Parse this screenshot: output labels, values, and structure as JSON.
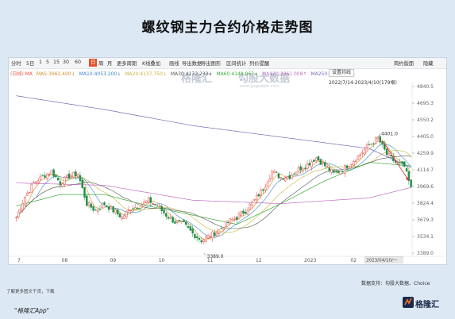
{
  "title": "螺纹钢主力合约价格走势图",
  "toolbar": {
    "items": [
      "分时",
      "5日",
      "1",
      "5",
      "15",
      "30",
      "60",
      "日",
      "周",
      "月",
      "更多周期",
      "K线叠加",
      "画线",
      "导出数据",
      "导出图形",
      "区间统计",
      "列价提醒"
    ],
    "active_index": 7,
    "right_items": [
      "简约版面",
      "隐藏"
    ]
  },
  "ma_legend": {
    "label": "(日线) MA",
    "items": [
      {
        "text": "MA5:3962.400↓",
        "color": "#d4902a"
      },
      {
        "text": "MA10:4053.200↓",
        "color": "#3a86c8"
      },
      {
        "text": "MA20:4137.750↓",
        "color": "#c8b43a"
      },
      {
        "text": "MA30:4172.233↓",
        "color": "#555555"
      },
      {
        "text": "MA60:4148.967↓",
        "color": "#3aa83a"
      },
      {
        "text": "MA120:3961.008↑",
        "color": "#c06fc0"
      },
      {
        "text": "MA250:4133.656↓",
        "color": "#7b68b8"
      }
    ]
  },
  "settings_label": "设置均线",
  "range_label": "2022/7/14-2023/4/10(179根)",
  "watermark": {
    "name": "格隆汇",
    "sub": "勾股大数据",
    "url": "www.gogudata.com"
  },
  "annotation_high": "4401.0",
  "annotation_low": "3389.0",
  "x_selected": "2023/04/10/一",
  "footer_note": "了解更多图文干货，下载",
  "source": "数据支持：勾股大数据、Choice",
  "app_label": "\"格隆汇App\"",
  "brand_name": "格隆汇",
  "colors": {
    "up": "#e8433a",
    "down": "#1f8f4a",
    "trend_arrow": "#e03a3a"
  },
  "chart_data": {
    "type": "candlestick",
    "title": "螺纹钢主力合约价格走势图",
    "x_range": [
      "2022/7/14",
      "2023/4/10"
    ],
    "x_tick_labels": [
      "7",
      "08",
      "09",
      "10",
      "11",
      "12",
      "2023",
      "02",
      "03"
    ],
    "y_tick_labels": [
      3389.0,
      3534.1,
      3679.3,
      3824.4,
      3969.6,
      4114.7,
      4259.9,
      4405.0,
      4550.2,
      4695.3,
      4840.5
    ],
    "ylim": [
      3389.0,
      4840.5
    ],
    "grid": false,
    "close_path": [
      [
        0,
        3700
      ],
      [
        4,
        3880
      ],
      [
        8,
        4000
      ],
      [
        12,
        4060
      ],
      [
        16,
        4100
      ],
      [
        20,
        4000
      ],
      [
        24,
        4060
      ],
      [
        28,
        4080
      ],
      [
        32,
        3820
      ],
      [
        36,
        3760
      ],
      [
        40,
        3820
      ],
      [
        44,
        3760
      ],
      [
        48,
        3700
      ],
      [
        52,
        3780
      ],
      [
        56,
        3800
      ],
      [
        60,
        3850
      ],
      [
        64,
        3800
      ],
      [
        68,
        3720
      ],
      [
        72,
        3660
      ],
      [
        76,
        3640
      ],
      [
        80,
        3560
      ],
      [
        84,
        3500
      ],
      [
        88,
        3540
      ],
      [
        92,
        3590
      ],
      [
        96,
        3660
      ],
      [
        100,
        3700
      ],
      [
        104,
        3760
      ],
      [
        108,
        3850
      ],
      [
        112,
        3950
      ],
      [
        116,
        4100
      ],
      [
        120,
        4050
      ],
      [
        124,
        4060
      ],
      [
        128,
        4120
      ],
      [
        132,
        4160
      ],
      [
        136,
        4220
      ],
      [
        140,
        4150
      ],
      [
        144,
        4080
      ],
      [
        148,
        4120
      ],
      [
        152,
        4180
      ],
      [
        156,
        4250
      ],
      [
        160,
        4330
      ],
      [
        164,
        4390
      ],
      [
        168,
        4250
      ],
      [
        172,
        4180
      ],
      [
        176,
        4140
      ],
      [
        179,
        3950
      ]
    ],
    "ma_series": [
      {
        "name": "MA5",
        "values": [
          3962.4
        ]
      },
      {
        "name": "MA10",
        "values": [
          4053.2
        ]
      },
      {
        "name": "MA20",
        "values": [
          4137.75
        ]
      },
      {
        "name": "MA30",
        "values": [
          4172.233
        ]
      },
      {
        "name": "MA60",
        "values": [
          4148.967
        ]
      },
      {
        "name": "MA120",
        "values": [
          3961.008
        ]
      },
      {
        "name": "MA250",
        "values": [
          4133.656
        ]
      }
    ],
    "ma250_path": [
      [
        0,
        4760
      ],
      [
        40,
        4640
      ],
      [
        80,
        4500
      ],
      [
        120,
        4400
      ],
      [
        160,
        4300
      ],
      [
        179,
        4134
      ]
    ],
    "ma120_path": [
      [
        0,
        4000
      ],
      [
        40,
        3980
      ],
      [
        80,
        3850
      ],
      [
        120,
        3820
      ],
      [
        160,
        3870
      ],
      [
        179,
        3961
      ]
    ],
    "ma60_path": [
      [
        0,
        3800
      ],
      [
        20,
        3900
      ],
      [
        40,
        3900
      ],
      [
        60,
        3800
      ],
      [
        80,
        3720
      ],
      [
        100,
        3640
      ],
      [
        120,
        3820
      ],
      [
        140,
        4020
      ],
      [
        160,
        4180
      ],
      [
        179,
        4149
      ]
    ],
    "annotations": [
      {
        "text": "4401.0",
        "x": 164,
        "y": 4401.0
      },
      {
        "text": "3389.0",
        "x": 85,
        "y": 3389.0
      }
    ]
  }
}
